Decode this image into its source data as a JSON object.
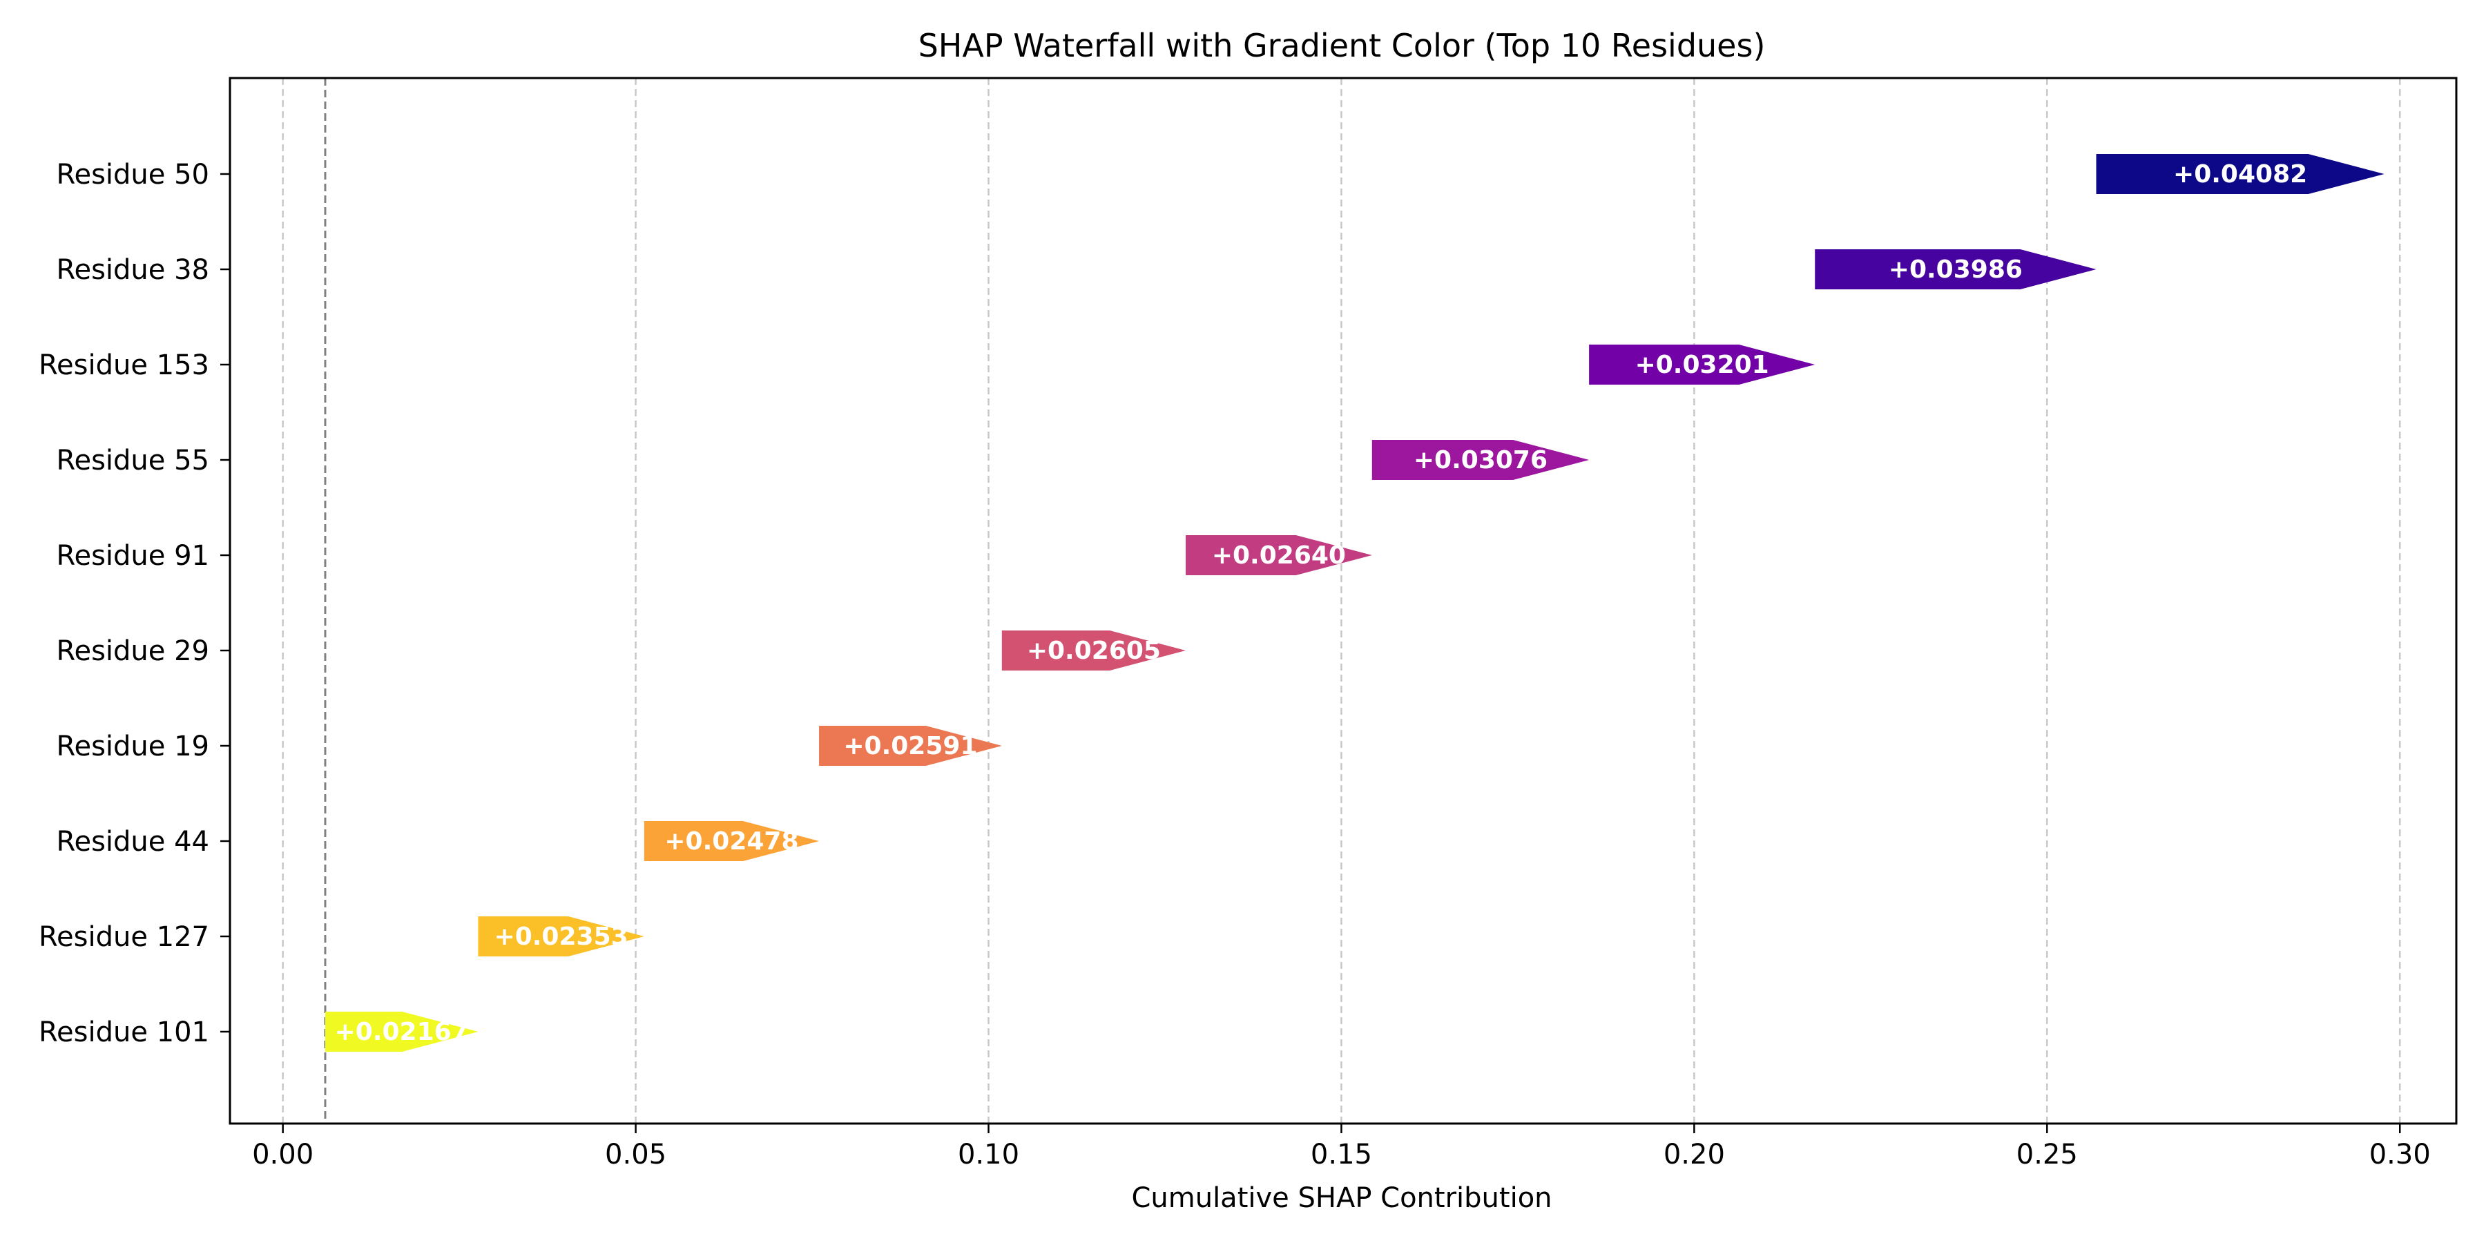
{
  "chart_data": {
    "type": "bar",
    "orientation": "horizontal-waterfall",
    "title": "SHAP Waterfall with Gradient Color (Top 10 Residues)",
    "xlabel": "Cumulative SHAP Contribution",
    "ylabel": "",
    "xlim": [
      -0.0075,
      0.308
    ],
    "x_ticks": [
      0.0,
      0.05,
      0.1,
      0.15,
      0.2,
      0.25,
      0.3
    ],
    "x_tick_labels": [
      "0.00",
      "0.05",
      "0.10",
      "0.15",
      "0.20",
      "0.25",
      "0.30"
    ],
    "grid": "x-dashed",
    "baseline": 0.006,
    "colormap": "plasma",
    "categories": [
      "Residue 101",
      "Residue 127",
      "Residue 44",
      "Residue 19",
      "Residue 29",
      "Residue 91",
      "Residue 55",
      "Residue 153",
      "Residue 38",
      "Residue 50"
    ],
    "values": [
      0.02167,
      0.02353,
      0.02478,
      0.02591,
      0.02605,
      0.0264,
      0.03076,
      0.03201,
      0.03986,
      0.04082
    ],
    "value_labels": [
      "+0.02167",
      "+0.02353",
      "+0.02478",
      "+0.02591",
      "+0.02605",
      "+0.02640",
      "+0.03076",
      "+0.03201",
      "+0.03986",
      "+0.04082"
    ],
    "colors": [
      "#f0f921",
      "#fbc027",
      "#fca338",
      "#ec7853",
      "#d35171",
      "#c23c81",
      "#9c179e",
      "#7201a8",
      "#46039f",
      "#0d0887"
    ]
  }
}
